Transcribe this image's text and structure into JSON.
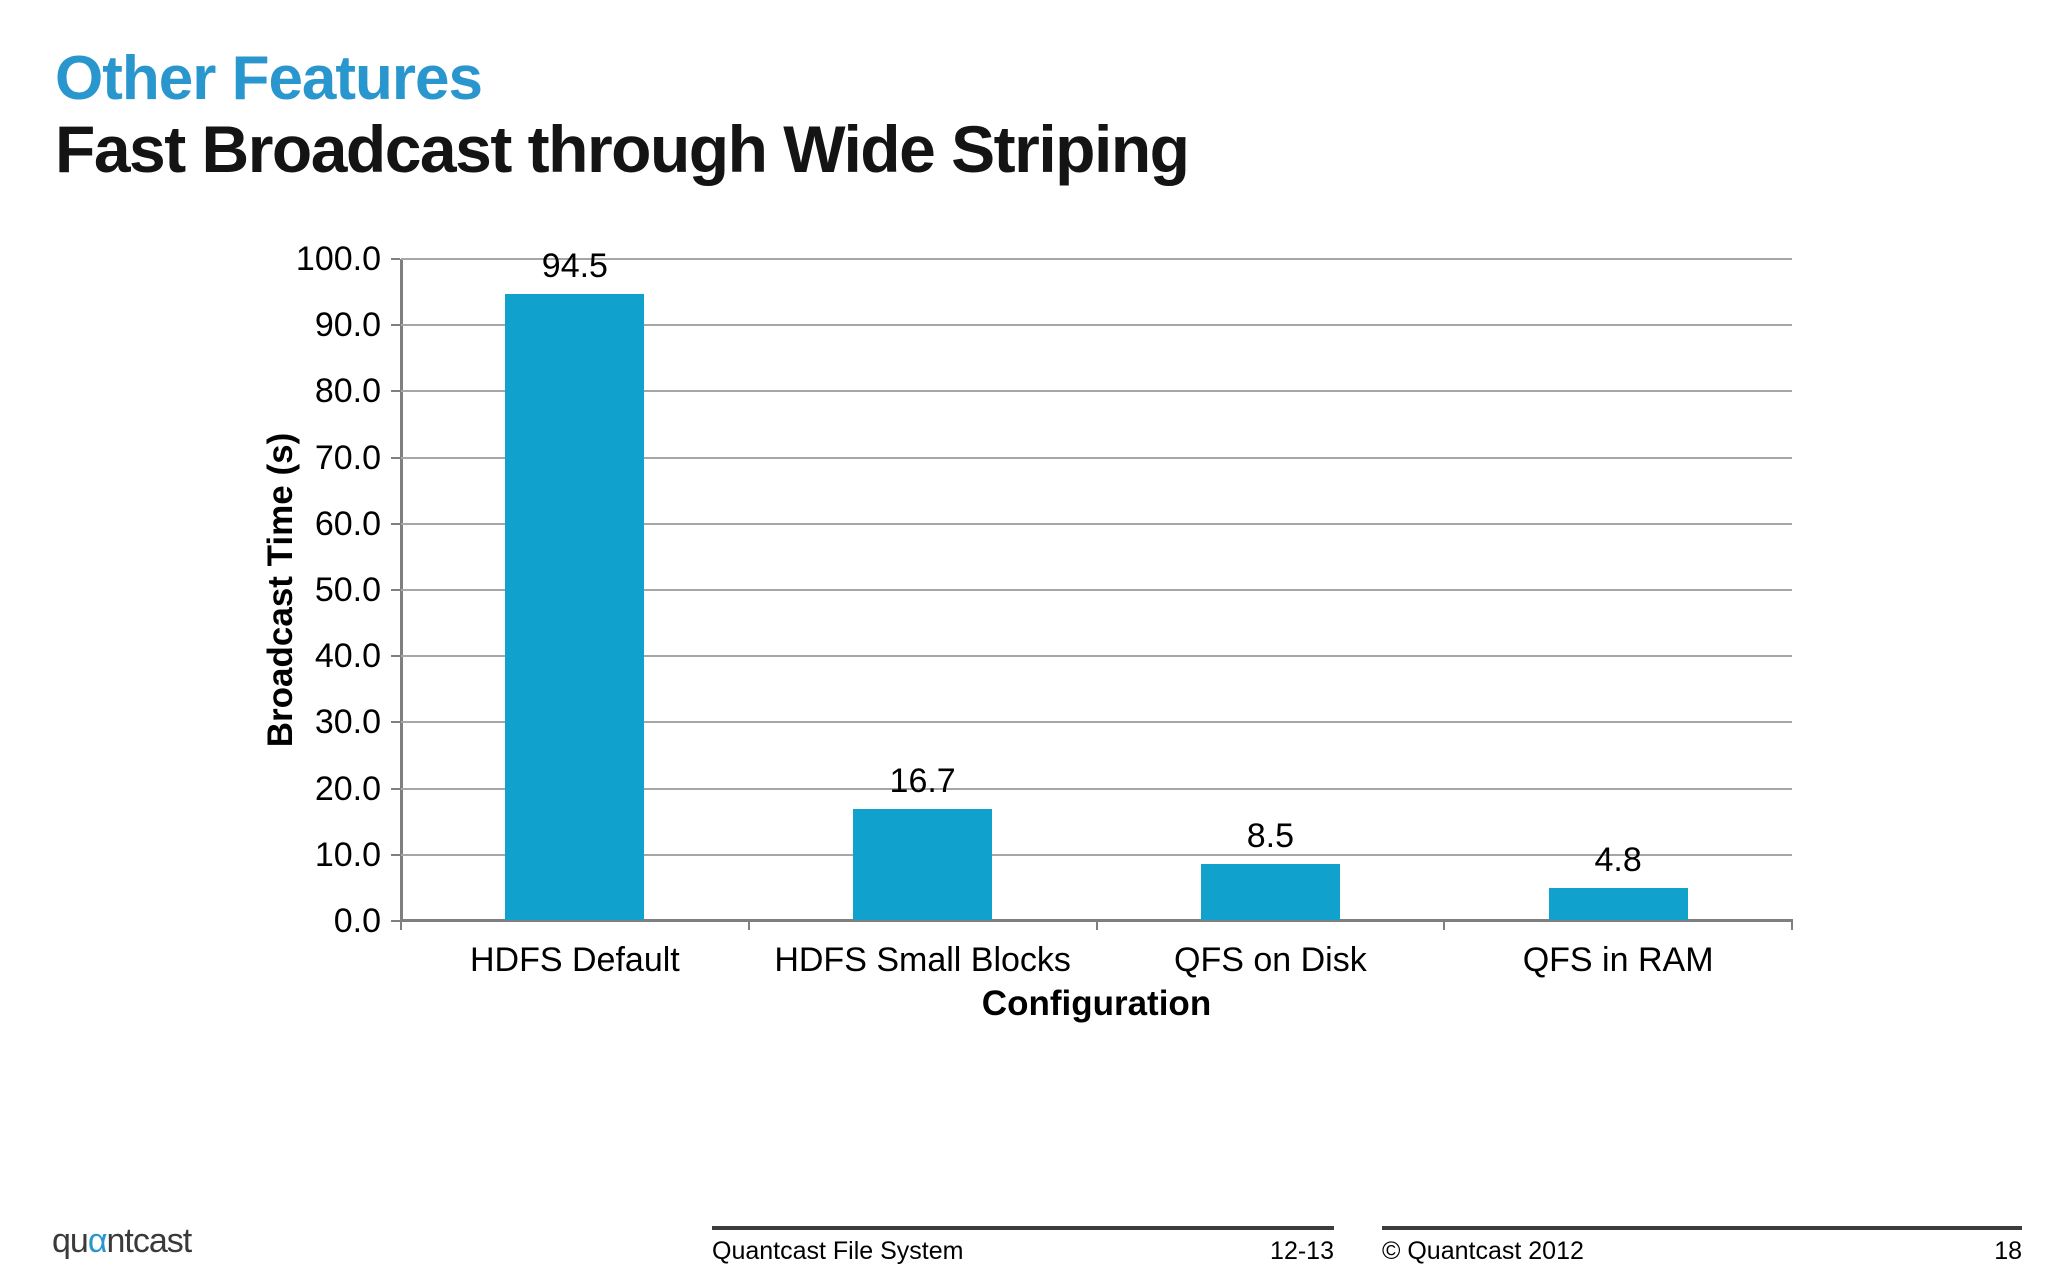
{
  "slide": {
    "kicker": "Other Features",
    "title": "Fast Broadcast through Wide Striping"
  },
  "chart_data": {
    "type": "bar",
    "categories": [
      "HDFS Default",
      "HDFS Small Blocks",
      "QFS on Disk",
      "QFS in RAM"
    ],
    "values": [
      94.5,
      16.7,
      8.5,
      4.8
    ],
    "value_labels": [
      "94.5",
      "16.7",
      "8.5",
      "4.8"
    ],
    "title": "",
    "xlabel": "Configuration",
    "ylabel": "Broadcast Time (s)",
    "ylim": [
      0,
      100
    ],
    "ytick_step": 10,
    "ytick_decimals": 1,
    "grid": true,
    "legend": "none",
    "bar_color": "#10a2cc"
  },
  "footer": {
    "logo": {
      "prefix": "qu",
      "alpha": "α",
      "suffix": "ntcast"
    },
    "left_doc_title": "Quantcast File System",
    "left_page_range": "12-13",
    "right_copyright": "© Quantcast 2012",
    "right_page": "18"
  },
  "colors": {
    "kicker_blue": "#2996ce",
    "logo_alpha_blue": "#2996ce",
    "bar_cyan": "#10a2cc",
    "gridline_gray": "#a6a6a6",
    "axis_gray": "#7f7f7f"
  }
}
